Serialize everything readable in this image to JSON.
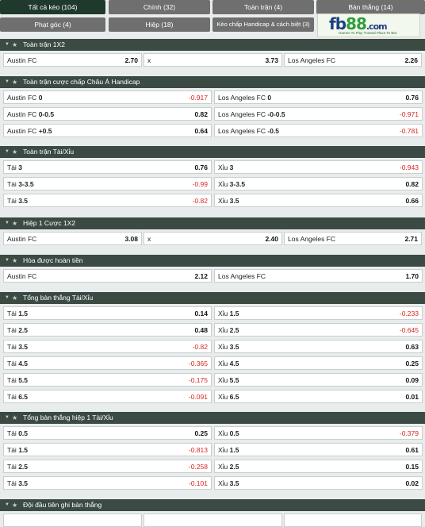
{
  "tabs": [
    {
      "label": "Tất cả kèo (104)",
      "active": true
    },
    {
      "label": "Chính (32)",
      "active": false
    },
    {
      "label": "Toàn trận (4)",
      "active": false
    },
    {
      "label": "Bàn thắng (14)",
      "active": false
    },
    {
      "label": "Phạt góc (4)",
      "active": false
    },
    {
      "label": "Hiệp (18)",
      "active": false
    },
    {
      "label": "Kèo chấp Handicap & cách biệt (3)",
      "active": false
    }
  ],
  "logo": {
    "brand_main": "fb",
    "brand_accent": "88",
    "brand_suffix": ".com",
    "tagline": "Games To Play Trusted Place To Bet"
  },
  "sections": [
    {
      "title": "Toàn trận 1X2",
      "rows": [
        [
          {
            "name": "Austin FC",
            "odd": "2.70",
            "bold": false
          },
          {
            "name": "x",
            "odd": "3.73",
            "bold": false
          },
          {
            "name": "Los Angeles FC",
            "odd": "2.26",
            "bold": false
          }
        ]
      ]
    },
    {
      "title": "Toàn trận cược chấp Châu Á Handicap",
      "rows": [
        [
          {
            "name": "Austin FC",
            "hcp": "0",
            "odd": "-0.917",
            "neg": true
          },
          {
            "name": "Los Angeles FC",
            "hcp": "0",
            "odd": "0.76",
            "neg": false
          }
        ],
        [
          {
            "name": "Austin FC",
            "hcp": "0-0.5",
            "odd": "0.82",
            "neg": false
          },
          {
            "name": "Los Angeles FC",
            "hcp": "-0-0.5",
            "odd": "-0.971",
            "neg": true
          }
        ],
        [
          {
            "name": "Austin FC",
            "hcp": "+0.5",
            "odd": "0.64",
            "neg": false
          },
          {
            "name": "Los Angeles FC",
            "hcp": "-0.5",
            "odd": "-0.781",
            "neg": true
          }
        ]
      ]
    },
    {
      "title": "Toàn trận Tài/Xỉu",
      "rows": [
        [
          {
            "name": "Tài",
            "hcp": "3",
            "odd": "0.76",
            "neg": false
          },
          {
            "name": "Xỉu",
            "hcp": "3",
            "odd": "-0.943",
            "neg": true
          }
        ],
        [
          {
            "name": "Tài",
            "hcp": "3-3.5",
            "odd": "-0.99",
            "neg": true
          },
          {
            "name": "Xỉu",
            "hcp": "3-3.5",
            "odd": "0.82",
            "neg": false
          }
        ],
        [
          {
            "name": "Tài",
            "hcp": "3.5",
            "odd": "-0.82",
            "neg": true
          },
          {
            "name": "Xỉu",
            "hcp": "3.5",
            "odd": "0.66",
            "neg": false
          }
        ]
      ]
    },
    {
      "title": "Hiệp 1 Cược 1X2",
      "rows": [
        [
          {
            "name": "Austin FC",
            "odd": "3.08"
          },
          {
            "name": "x",
            "odd": "2.40"
          },
          {
            "name": "Los Angeles FC",
            "odd": "2.71"
          }
        ]
      ]
    },
    {
      "title": "Hòa được hoàn tiền",
      "rows": [
        [
          {
            "name": "Austin FC",
            "odd": "2.12"
          },
          {
            "name": "Los Angeles FC",
            "odd": "1.70"
          }
        ]
      ]
    },
    {
      "title": "Tổng bàn thắng Tài/Xỉu",
      "rows": [
        [
          {
            "name": "Tài",
            "hcp": "1.5",
            "odd": "0.14",
            "neg": false
          },
          {
            "name": "Xỉu",
            "hcp": "1.5",
            "odd": "-0.233",
            "neg": true
          }
        ],
        [
          {
            "name": "Tài",
            "hcp": "2.5",
            "odd": "0.48",
            "neg": false
          },
          {
            "name": "Xỉu",
            "hcp": "2.5",
            "odd": "-0.645",
            "neg": true
          }
        ],
        [
          {
            "name": "Tài",
            "hcp": "3.5",
            "odd": "-0.82",
            "neg": true
          },
          {
            "name": "Xỉu",
            "hcp": "3.5",
            "odd": "0.63",
            "neg": false
          }
        ],
        [
          {
            "name": "Tài",
            "hcp": "4.5",
            "odd": "-0.365",
            "neg": true
          },
          {
            "name": "Xỉu",
            "hcp": "4.5",
            "odd": "0.25",
            "neg": false
          }
        ],
        [
          {
            "name": "Tài",
            "hcp": "5.5",
            "odd": "-0.175",
            "neg": true
          },
          {
            "name": "Xỉu",
            "hcp": "5.5",
            "odd": "0.09",
            "neg": false
          }
        ],
        [
          {
            "name": "Tài",
            "hcp": "6.5",
            "odd": "-0.091",
            "neg": true
          },
          {
            "name": "Xỉu",
            "hcp": "6.5",
            "odd": "0.01",
            "neg": false
          }
        ]
      ]
    },
    {
      "title": "Tổng bàn thắng hiệp 1 Tài/Xỉu",
      "rows": [
        [
          {
            "name": "Tài",
            "hcp": "0.5",
            "odd": "0.25",
            "neg": false
          },
          {
            "name": "Xỉu",
            "hcp": "0.5",
            "odd": "-0.379",
            "neg": true
          }
        ],
        [
          {
            "name": "Tài",
            "hcp": "1.5",
            "odd": "-0.813",
            "neg": true
          },
          {
            "name": "Xỉu",
            "hcp": "1.5",
            "odd": "0.61",
            "neg": false
          }
        ],
        [
          {
            "name": "Tài",
            "hcp": "2.5",
            "odd": "-0.258",
            "neg": true
          },
          {
            "name": "Xỉu",
            "hcp": "2.5",
            "odd": "0.15",
            "neg": false
          }
        ],
        [
          {
            "name": "Tài",
            "hcp": "3.5",
            "odd": "-0.101",
            "neg": true
          },
          {
            "name": "Xỉu",
            "hcp": "3.5",
            "odd": "0.02",
            "neg": false
          }
        ]
      ]
    },
    {
      "title": "Đội đầu tiên ghi bàn thắng",
      "rows": []
    }
  ],
  "icons": {
    "collapse": "chevron-down-icon",
    "favorite": "star-icon"
  },
  "colors": {
    "active_tab": "#1f3a2d",
    "tab": "#6f6f6f",
    "section_header": "#3b4a43",
    "negative_odd": "#d8261f"
  }
}
